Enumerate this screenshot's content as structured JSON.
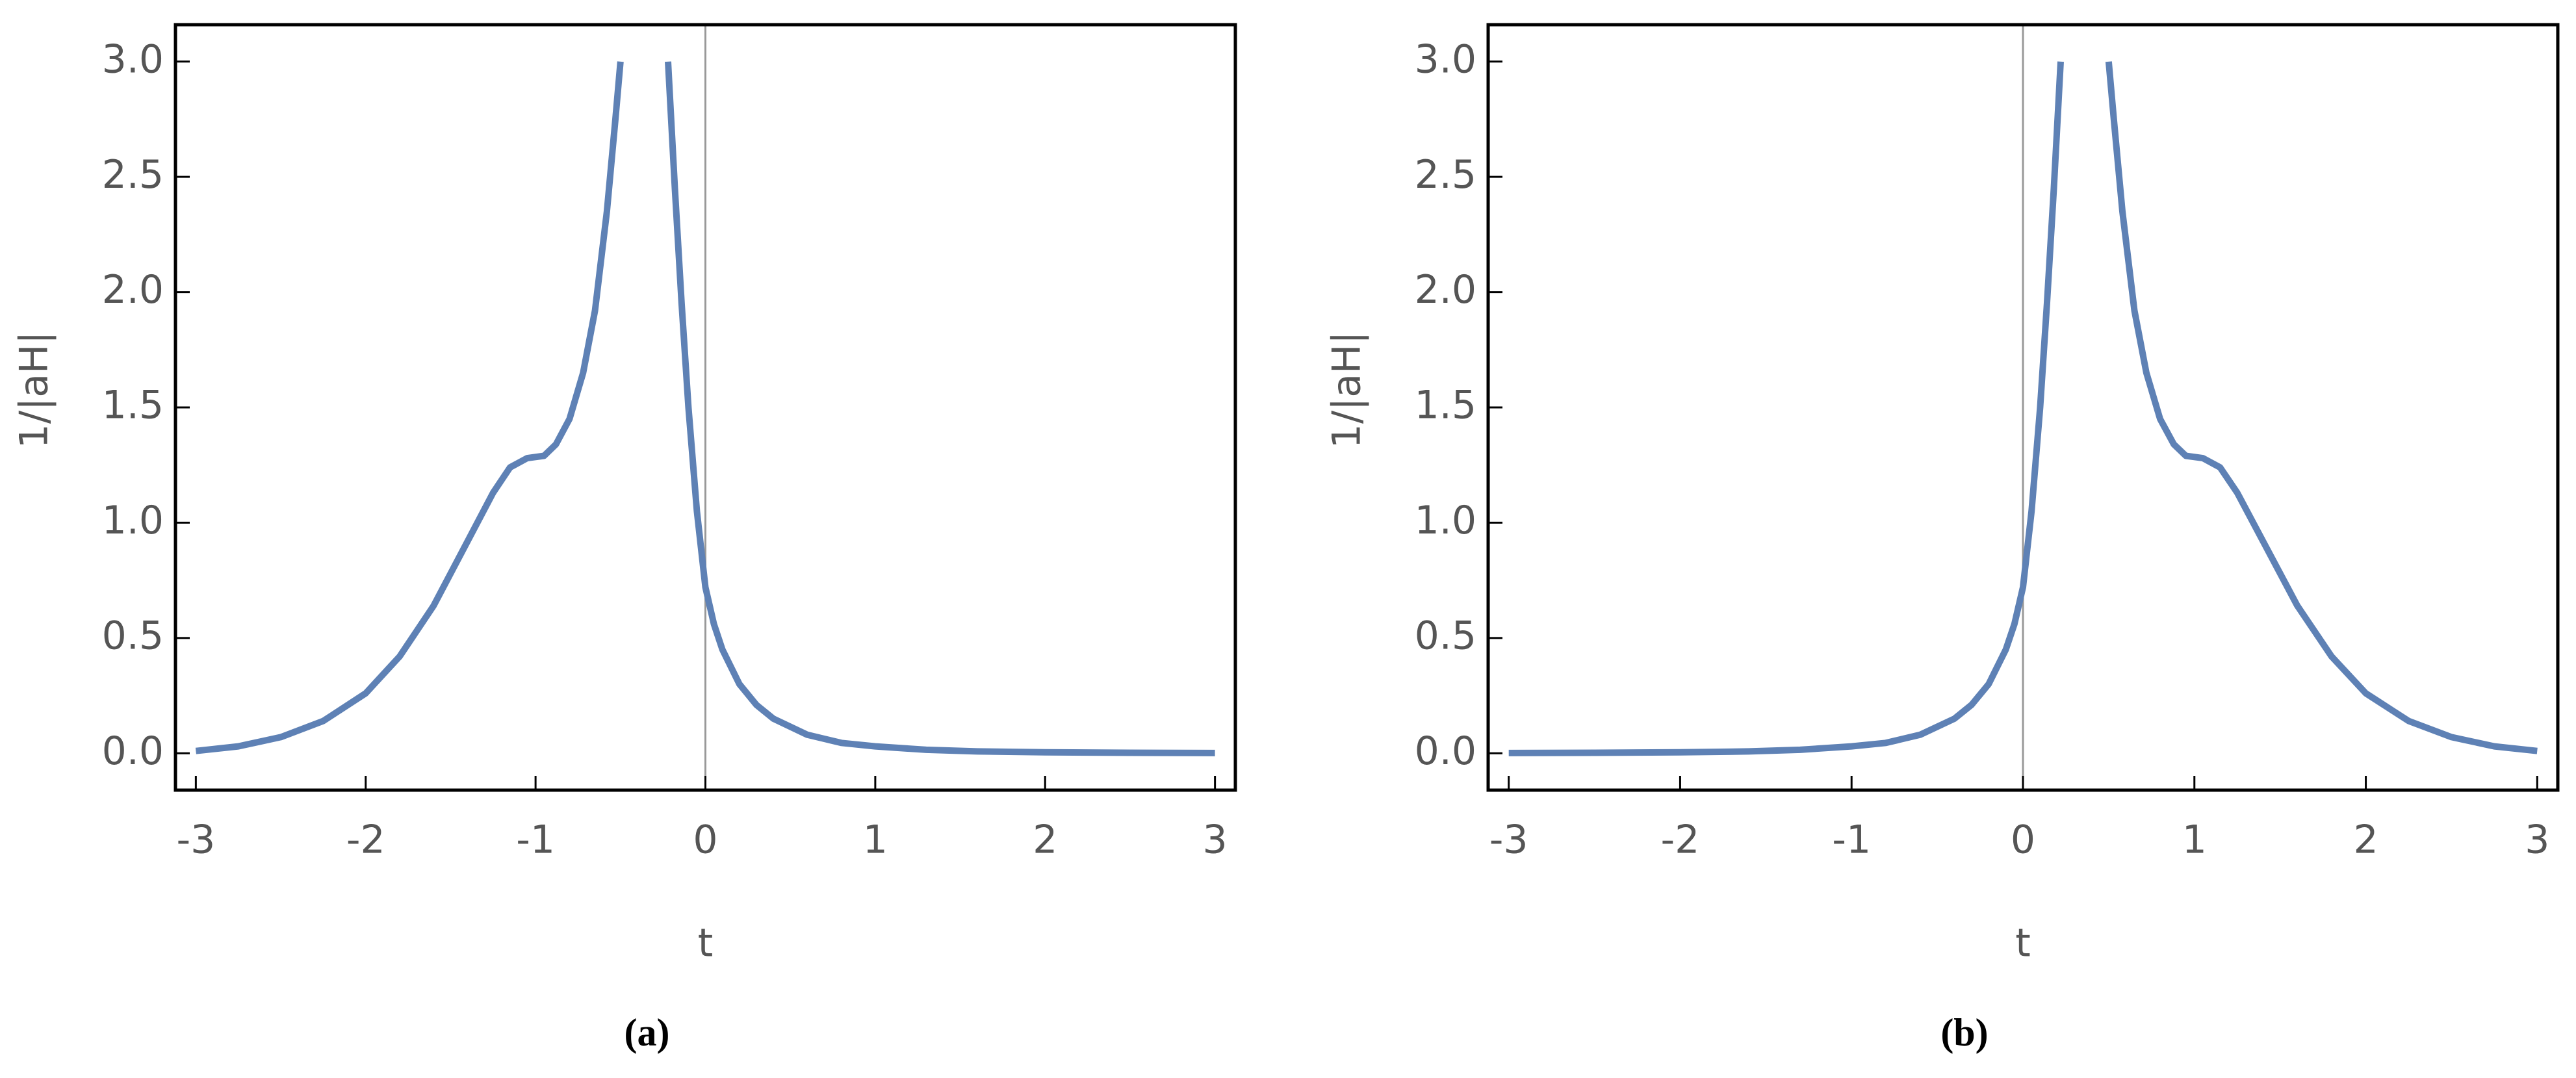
{
  "chart_data": [
    {
      "type": "line",
      "caption": "(a)",
      "xlabel": "t",
      "ylabel": "1/|aH|",
      "color": "#5e81b5",
      "x": [
        -3,
        -2.75,
        -2.5,
        -2.25,
        -2,
        -1.8,
        -1.6,
        -1.4,
        -1.25,
        -1.15,
        -1.05,
        -0.95,
        -0.88,
        -0.8,
        -0.72,
        -0.65,
        -0.58,
        -0.53,
        -0.5,
        -0.35,
        -0.22,
        -0.18,
        -0.14,
        -0.1,
        -0.05,
        0,
        0.05,
        0.1,
        0.2,
        0.3,
        0.4,
        0.6,
        0.8,
        1,
        1.3,
        1.6,
        2,
        2.5,
        3
      ],
      "values": [
        0.01,
        0.03,
        0.07,
        0.14,
        0.26,
        0.42,
        0.64,
        0.92,
        1.13,
        1.24,
        1.28,
        1.29,
        1.34,
        1.45,
        1.65,
        1.92,
        2.35,
        2.75,
        3.0,
        null,
        3.0,
        2.45,
        1.95,
        1.5,
        1.05,
        0.72,
        0.56,
        0.45,
        0.3,
        0.21,
        0.15,
        0.08,
        0.045,
        0.03,
        0.015,
        0.008,
        0.004,
        0.002,
        0.001
      ],
      "xlim": [
        -3.12,
        3.12
      ],
      "ylim": [
        -0.16,
        3.16
      ],
      "xticks": [
        -3,
        -2,
        -1,
        0,
        1,
        2,
        3
      ],
      "yticks": [
        {
          "value": 0,
          "label": "0.0"
        },
        0.5,
        {
          "value": 1,
          "label": "1.0"
        },
        1.5,
        {
          "value": 2,
          "label": "2.0"
        },
        2.5,
        {
          "value": 3,
          "label": "3.0"
        }
      ]
    },
    {
      "type": "line",
      "caption": "(b)",
      "xlabel": "t",
      "ylabel": "1/|aH|",
      "color": "#5e81b5",
      "x": [
        -3,
        -2.5,
        -2,
        -1.6,
        -1.3,
        -1,
        -0.8,
        -0.6,
        -0.4,
        -0.3,
        -0.2,
        -0.1,
        -0.05,
        0,
        0.05,
        0.1,
        0.14,
        0.18,
        0.22,
        0.35,
        0.5,
        0.53,
        0.58,
        0.65,
        0.72,
        0.8,
        0.88,
        0.95,
        1.05,
        1.15,
        1.25,
        1.4,
        1.6,
        1.8,
        2,
        2.25,
        2.5,
        2.75,
        3
      ],
      "values": [
        0.001,
        0.002,
        0.004,
        0.008,
        0.015,
        0.03,
        0.045,
        0.08,
        0.15,
        0.21,
        0.3,
        0.45,
        0.56,
        0.72,
        1.05,
        1.5,
        1.95,
        2.45,
        3.0,
        null,
        3.0,
        2.75,
        2.35,
        1.92,
        1.65,
        1.45,
        1.34,
        1.29,
        1.28,
        1.24,
        1.13,
        0.92,
        0.64,
        0.42,
        0.26,
        0.14,
        0.07,
        0.03,
        0.01
      ],
      "xlim": [
        -3.12,
        3.12
      ],
      "ylim": [
        -0.16,
        3.16
      ],
      "xticks": [
        -3,
        -2,
        -1,
        0,
        1,
        2,
        3
      ],
      "yticks": [
        {
          "value": 0,
          "label": "0.0"
        },
        0.5,
        {
          "value": 1,
          "label": "1.0"
        },
        1.5,
        {
          "value": 2,
          "label": "2.0"
        },
        2.5,
        {
          "value": 3,
          "label": "3.0"
        }
      ]
    }
  ]
}
